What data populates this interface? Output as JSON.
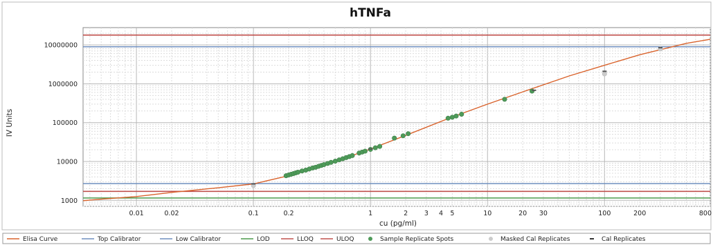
{
  "chart_data": {
    "type": "scatter",
    "title": "hTNFa",
    "xlabel": "cu (pg/ml)",
    "ylabel": "IV Units",
    "x_scale": "log",
    "y_scale": "log",
    "xlim": [
      0.0035,
      800
    ],
    "ylim": [
      700,
      28000000
    ],
    "grid": true,
    "legend_position": "bottom",
    "x_ticks": [
      {
        "value": 0.01,
        "label": "0.01"
      },
      {
        "value": 0.02,
        "label": "0.02"
      },
      {
        "value": 0.1,
        "label": "0.1"
      },
      {
        "value": 0.2,
        "label": "0.2"
      },
      {
        "value": 1,
        "label": "1"
      },
      {
        "value": 2,
        "label": "2"
      },
      {
        "value": 3,
        "label": "3"
      },
      {
        "value": 4,
        "label": "4"
      },
      {
        "value": 5,
        "label": "5"
      },
      {
        "value": 10,
        "label": "10"
      },
      {
        "value": 20,
        "label": "20"
      },
      {
        "value": 30,
        "label": "30"
      },
      {
        "value": 100,
        "label": "100"
      },
      {
        "value": 200,
        "label": "200"
      },
      {
        "value": 800,
        "label": "800"
      }
    ],
    "y_ticks": [
      {
        "value": 1000,
        "label": "1000"
      },
      {
        "value": 10000,
        "label": "10000"
      },
      {
        "value": 100000,
        "label": "100000"
      },
      {
        "value": 1000000,
        "label": "1000000"
      },
      {
        "value": 10000000,
        "label": "10000000"
      }
    ],
    "reference_lines": [
      {
        "name": "Top Calibrator",
        "y": 9000000,
        "color": "#6f8fbf"
      },
      {
        "name": "Low Calibrator",
        "y": 2700,
        "color": "#6f8fbf"
      },
      {
        "name": "LOD",
        "y": 1150,
        "color": "#4c9a4c"
      },
      {
        "name": "LLOQ",
        "y": 1700,
        "color": "#c0504d"
      },
      {
        "name": "ULOQ",
        "y": 18000000,
        "color": "#c0504d"
      }
    ],
    "curve": {
      "name": "Elisa Curve",
      "color": "#d9622b",
      "x": [
        0.0035,
        0.005,
        0.01,
        0.02,
        0.05,
        0.1,
        0.2,
        0.5,
        1,
        2,
        5,
        10,
        20,
        50,
        100,
        200,
        500,
        800
      ],
      "y": [
        980,
        1070,
        1250,
        1600,
        2100,
        2650,
        4300,
        10000,
        21000,
        47000,
        140000,
        300000,
        620000,
        1600000,
        3000000,
        5600000,
        11000000,
        14000000
      ]
    },
    "series": [
      {
        "name": "Sample Replicate Spots",
        "color": "#4e9a59",
        "points": [
          [
            0.19,
            4300
          ],
          [
            0.2,
            4500
          ],
          [
            0.21,
            4700
          ],
          [
            0.22,
            4900
          ],
          [
            0.23,
            5100
          ],
          [
            0.24,
            5300
          ],
          [
            0.26,
            5700
          ],
          [
            0.28,
            6000
          ],
          [
            0.3,
            6400
          ],
          [
            0.32,
            6800
          ],
          [
            0.34,
            7100
          ],
          [
            0.36,
            7500
          ],
          [
            0.38,
            7900
          ],
          [
            0.4,
            8300
          ],
          [
            0.43,
            8900
          ],
          [
            0.46,
            9500
          ],
          [
            0.5,
            10200
          ],
          [
            0.54,
            11000
          ],
          [
            0.58,
            11800
          ],
          [
            0.62,
            12600
          ],
          [
            0.66,
            13400
          ],
          [
            0.7,
            14200
          ],
          [
            0.8,
            16500
          ],
          [
            0.85,
            17500
          ],
          [
            0.9,
            18500
          ],
          [
            1.0,
            20500
          ],
          [
            1.1,
            22500
          ],
          [
            1.2,
            24500
          ],
          [
            1.6,
            40000
          ],
          [
            1.9,
            46000
          ],
          [
            2.1,
            52000
          ],
          [
            4.6,
            130000
          ],
          [
            5.0,
            138000
          ],
          [
            5.4,
            148000
          ],
          [
            6.0,
            165000
          ],
          [
            14,
            400000
          ],
          [
            24,
            650000
          ]
        ]
      },
      {
        "name": "Masked Cal Replicates",
        "color": "#cccccc",
        "points": [
          [
            0.1,
            2400
          ],
          [
            100,
            1800000
          ],
          [
            300,
            7900000
          ]
        ]
      },
      {
        "name": "Cal Replicates",
        "color": "#555555",
        "points": [
          [
            0.1,
            2650
          ],
          [
            1.0,
            21000
          ],
          [
            25,
            680000
          ],
          [
            100,
            2100000
          ],
          [
            300,
            8500000
          ]
        ]
      }
    ],
    "legend": [
      {
        "label": "Elisa Curve",
        "kind": "line",
        "color": "#d9622b"
      },
      {
        "label": "Top Calibrator",
        "kind": "line",
        "color": "#6f8fbf"
      },
      {
        "label": "Low Calibrator",
        "kind": "line",
        "color": "#6f8fbf"
      },
      {
        "label": "LOD",
        "kind": "line",
        "color": "#4c9a4c"
      },
      {
        "label": "LLOQ",
        "kind": "line",
        "color": "#c0504d"
      },
      {
        "label": "ULOQ",
        "kind": "line",
        "color": "#c0504d"
      },
      {
        "label": "Sample Replicate Spots",
        "kind": "dot",
        "color": "#4e9a59"
      },
      {
        "label": "Masked Cal Replicates",
        "kind": "dot",
        "color": "#cccccc"
      },
      {
        "label": "Cal Replicates",
        "kind": "dash",
        "color": "#333333"
      }
    ]
  }
}
